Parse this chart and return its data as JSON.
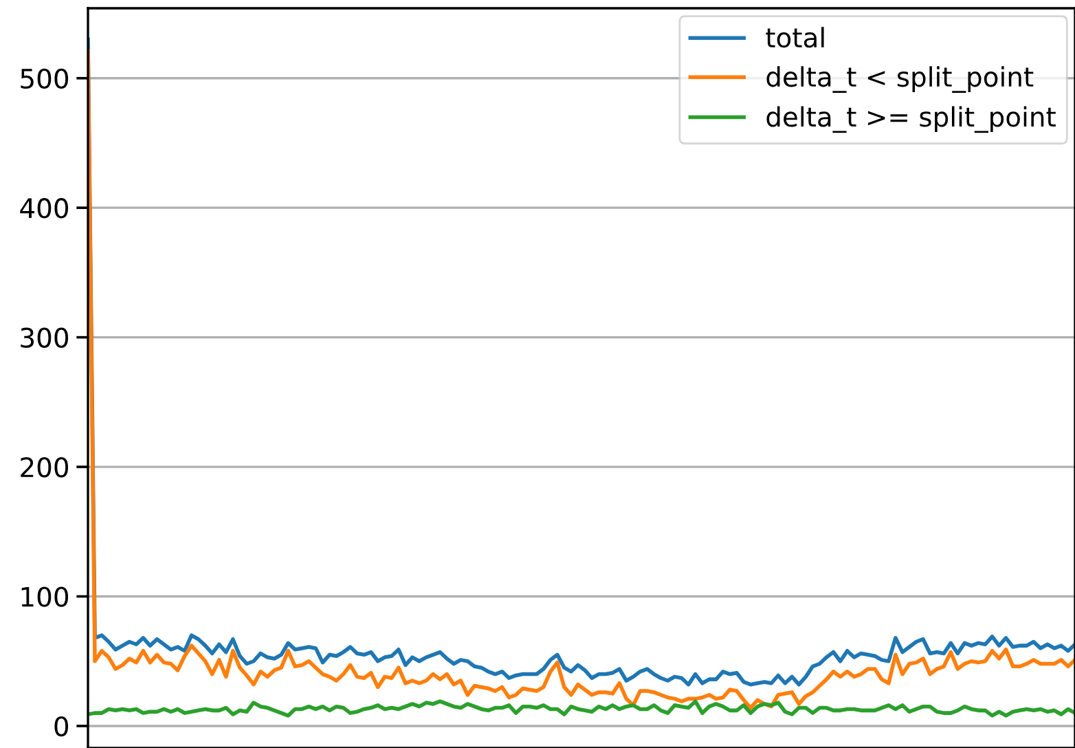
{
  "chart_data": {
    "type": "line",
    "categories": [
      null,
      null,
      null,
      null,
      null,
      null,
      null,
      null,
      null,
      null,
      null,
      null,
      null,
      null,
      null,
      null,
      null,
      null,
      null,
      null,
      null,
      null,
      null,
      null,
      null,
      null,
      null,
      null,
      null,
      null,
      null,
      null,
      null,
      null,
      null,
      null,
      null,
      null,
      null,
      null,
      null,
      null,
      null,
      null,
      null,
      null,
      null,
      null,
      null,
      null,
      null,
      null,
      null,
      null,
      null,
      null,
      null,
      null,
      null,
      null,
      null,
      null,
      null,
      null,
      null,
      null,
      null,
      null,
      null,
      null,
      null,
      null,
      null,
      null,
      null,
      null,
      null,
      null,
      null,
      null,
      null,
      null,
      null,
      null,
      null,
      null,
      null,
      null,
      null,
      null,
      null,
      null,
      null,
      null,
      null,
      null,
      null,
      null,
      null,
      null,
      null,
      null,
      null,
      null,
      null,
      null,
      null,
      null,
      null,
      null,
      null,
      null,
      null,
      null,
      null,
      null,
      null,
      null,
      null,
      null,
      null,
      null,
      null,
      null,
      null,
      null,
      null,
      null,
      null,
      null,
      null,
      null,
      null,
      null,
      null,
      null,
      null,
      null,
      null,
      null,
      null,
      null,
      null,
      null
    ],
    "series": [
      {
        "name": "total",
        "color": "#1f77b4",
        "values": [
          530,
          68,
          70,
          65,
          59,
          62,
          65,
          63,
          68,
          62,
          67,
          63,
          59,
          61,
          58,
          70,
          67,
          62,
          56,
          63,
          57,
          67,
          54,
          48,
          50,
          56,
          53,
          52,
          55,
          64,
          59,
          60,
          61,
          60,
          49,
          55,
          54,
          57,
          61,
          56,
          55,
          57,
          50,
          53,
          54,
          59,
          47,
          53,
          50,
          53,
          55,
          57,
          52,
          48,
          51,
          50,
          46,
          45,
          42,
          40,
          42,
          37,
          39,
          40,
          40,
          40,
          44,
          51,
          55,
          45,
          42,
          47,
          43,
          37,
          40,
          40,
          41,
          44,
          35,
          38,
          42,
          44,
          40,
          37,
          35,
          38,
          37,
          32,
          40,
          33,
          36,
          36,
          42,
          40,
          41,
          34,
          32,
          33,
          34,
          33,
          39,
          33,
          38,
          32,
          38,
          46,
          48,
          53,
          57,
          50,
          58,
          53,
          56,
          55,
          54,
          51,
          50,
          68,
          57,
          61,
          65,
          67,
          56,
          57,
          56,
          64,
          56,
          64,
          62,
          64,
          63,
          69,
          62,
          68,
          61,
          62,
          62,
          65,
          60,
          63,
          60,
          62,
          58,
          63
        ]
      },
      {
        "name": "delta_t < split_point",
        "color": "#ff7f0e",
        "values": [
          521,
          50,
          58,
          53,
          44,
          47,
          52,
          49,
          58,
          49,
          55,
          49,
          48,
          43,
          54,
          62,
          56,
          50,
          40,
          51,
          38,
          58,
          45,
          39,
          32,
          42,
          38,
          43,
          45,
          58,
          46,
          47,
          50,
          45,
          40,
          38,
          35,
          40,
          47,
          38,
          37,
          41,
          30,
          38,
          37,
          45,
          33,
          35,
          33,
          35,
          40,
          36,
          40,
          32,
          35,
          24,
          31,
          30,
          29,
          27,
          30,
          22,
          24,
          29,
          28,
          27,
          30,
          42,
          49,
          30,
          24,
          32,
          28,
          24,
          26,
          26,
          25,
          33,
          21,
          16,
          27,
          27,
          26,
          24,
          22,
          21,
          19,
          21,
          21,
          22,
          24,
          21,
          22,
          28,
          27,
          20,
          14,
          20,
          17,
          15,
          24,
          25,
          26,
          17,
          23,
          26,
          31,
          36,
          42,
          38,
          42,
          38,
          40,
          44,
          44,
          36,
          33,
          55,
          40,
          48,
          49,
          52,
          40,
          44,
          46,
          57,
          44,
          48,
          50,
          49,
          50,
          58,
          52,
          59,
          46,
          46,
          48,
          51,
          48,
          48,
          48,
          51,
          46,
          51
        ]
      },
      {
        "name": "delta_t >= split_point",
        "color": "#2ca02c",
        "values": [
          9,
          10,
          10,
          13,
          12,
          13,
          12,
          13,
          10,
          11,
          11,
          13,
          11,
          13,
          10,
          11,
          12,
          13,
          12,
          12,
          14,
          9,
          12,
          11,
          18,
          15,
          14,
          12,
          10,
          8,
          13,
          13,
          15,
          13,
          15,
          12,
          15,
          14,
          10,
          11,
          13,
          14,
          16,
          13,
          14,
          13,
          15,
          17,
          15,
          18,
          17,
          19,
          17,
          15,
          14,
          17,
          15,
          13,
          12,
          14,
          14,
          16,
          10,
          15,
          15,
          14,
          16,
          13,
          13,
          9,
          15,
          13,
          12,
          11,
          15,
          13,
          16,
          13,
          15,
          16,
          13,
          13,
          16,
          12,
          10,
          16,
          15,
          14,
          19,
          10,
          15,
          17,
          15,
          12,
          12,
          16,
          10,
          15,
          17,
          16,
          18,
          11,
          9,
          14,
          14,
          10,
          14,
          14,
          12,
          12,
          13,
          13,
          12,
          12,
          12,
          14,
          16,
          13,
          16,
          11,
          13,
          15,
          15,
          11,
          10,
          10,
          12,
          15,
          13,
          12,
          12,
          8,
          11,
          8,
          11,
          12,
          13,
          12,
          13,
          11,
          12,
          9,
          13,
          10
        ]
      }
    ],
    "ylim": [
      -17,
      554
    ],
    "yticks": [
      0,
      100,
      200,
      300,
      400,
      500
    ],
    "grid": "y",
    "legend": "top right",
    "tick_labels": "y"
  }
}
